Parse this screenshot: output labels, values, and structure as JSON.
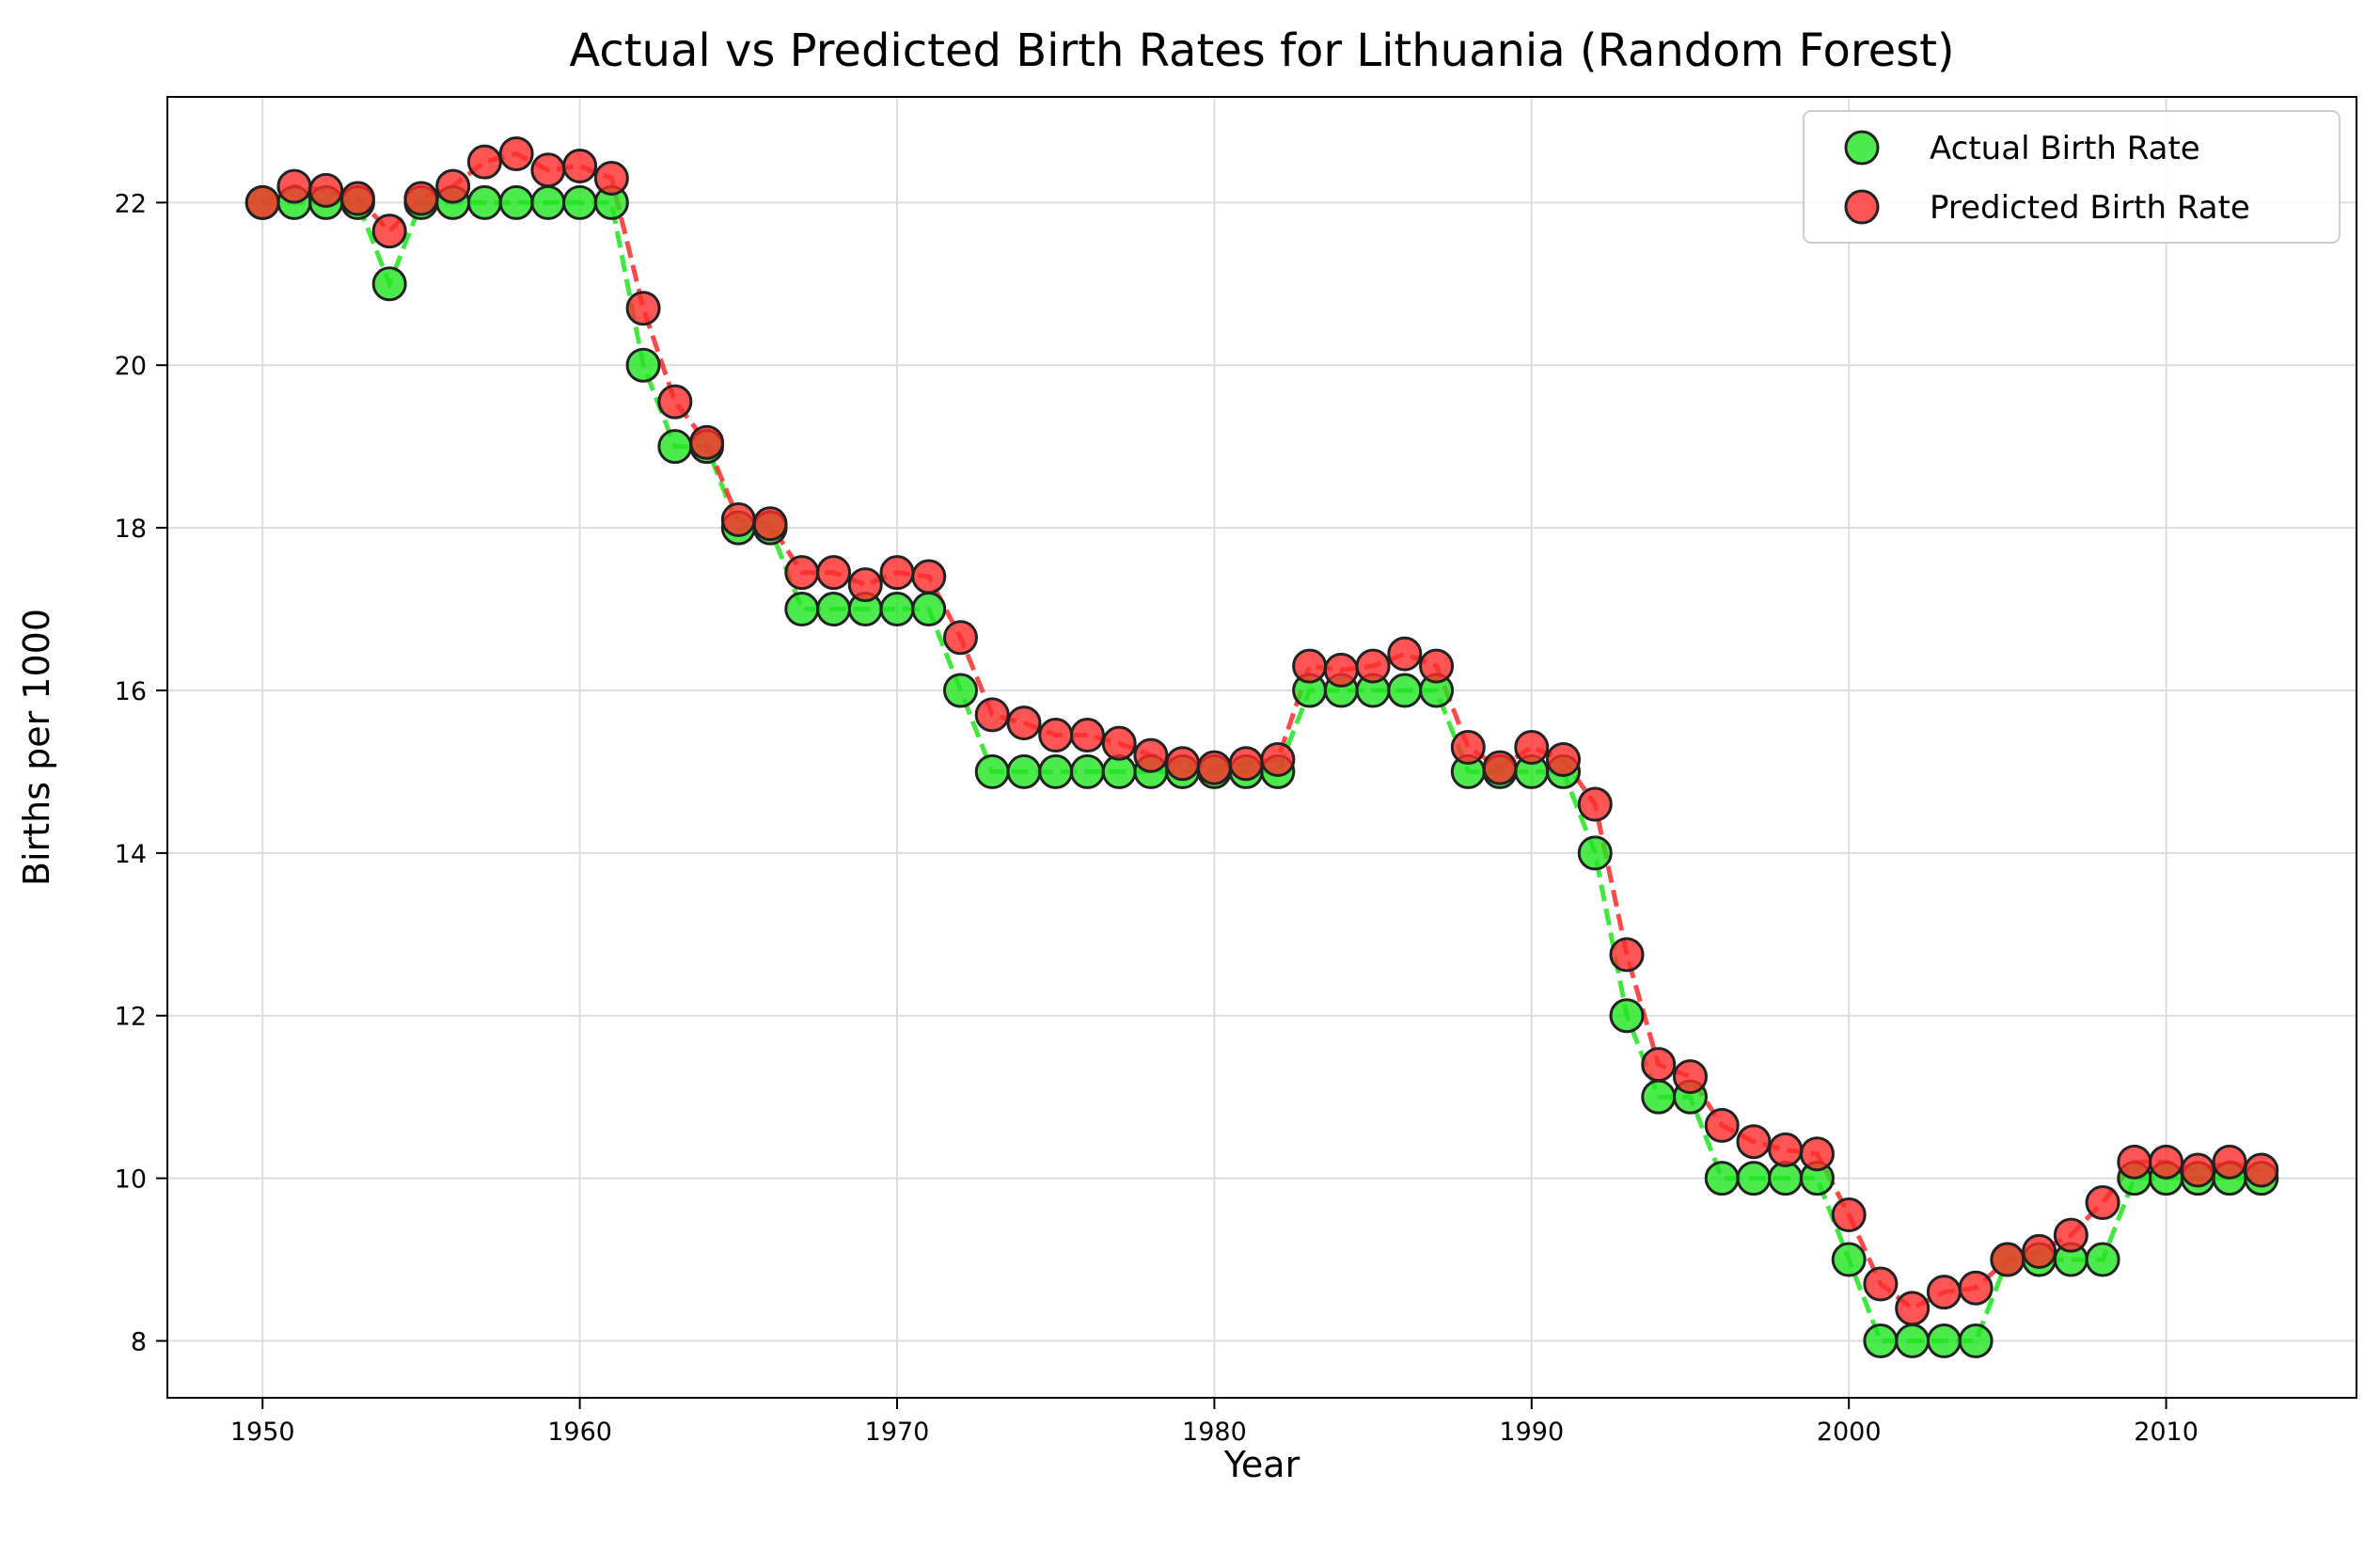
{
  "chart_data": {
    "type": "scatter",
    "title": "Actual vs Predicted Birth Rates for Lithuania (Random Forest)",
    "xlabel": "Year",
    "ylabel": "Births per 1000",
    "xlim": [
      1947,
      2016
    ],
    "ylim": [
      7.3,
      23.3
    ],
    "xticks": [
      1950,
      1960,
      1970,
      1980,
      1990,
      2000,
      2010
    ],
    "yticks": [
      8,
      10,
      12,
      14,
      16,
      18,
      20,
      22
    ],
    "grid": true,
    "legend_position": "top-right",
    "x": [
      1950,
      1951,
      1952,
      1953,
      1954,
      1955,
      1956,
      1957,
      1958,
      1959,
      1960,
      1961,
      1962,
      1963,
      1964,
      1965,
      1966,
      1967,
      1968,
      1969,
      1970,
      1971,
      1972,
      1973,
      1974,
      1975,
      1976,
      1977,
      1978,
      1979,
      1980,
      1981,
      1982,
      1983,
      1984,
      1985,
      1986,
      1987,
      1988,
      1989,
      1990,
      1991,
      1992,
      1993,
      1994,
      1995,
      1996,
      1997,
      1998,
      1999,
      2000,
      2001,
      2002,
      2003,
      2004,
      2005,
      2006,
      2007,
      2008,
      2009,
      2010,
      2011,
      2012,
      2013
    ],
    "series": [
      {
        "name": "Actual Birth Rate",
        "color": "#1fe51f",
        "values": [
          22,
          22,
          22,
          22,
          21,
          22,
          22,
          22,
          22,
          22,
          22,
          22,
          20,
          19,
          19,
          18,
          18,
          17,
          17,
          17,
          17,
          17,
          16,
          15,
          15,
          15,
          15,
          15,
          15,
          15,
          15,
          15,
          15,
          16,
          16,
          16,
          16,
          16,
          15,
          15,
          15,
          15,
          14,
          12,
          11,
          11,
          10,
          10,
          10,
          10,
          9,
          8,
          8,
          8,
          8,
          9,
          9,
          9,
          9,
          10,
          10,
          10,
          10,
          10
        ]
      },
      {
        "name": "Predicted Birth Rate",
        "color": "#ff2a2a",
        "values": [
          22.0,
          22.2,
          22.15,
          22.05,
          21.65,
          22.05,
          22.2,
          22.5,
          22.6,
          22.4,
          22.45,
          22.3,
          20.7,
          19.55,
          19.05,
          18.1,
          18.05,
          17.45,
          17.45,
          17.3,
          17.45,
          17.4,
          16.65,
          15.7,
          15.6,
          15.45,
          15.45,
          15.35,
          15.2,
          15.1,
          15.05,
          15.1,
          15.15,
          16.3,
          16.25,
          16.3,
          16.45,
          16.3,
          15.3,
          15.05,
          15.3,
          15.15,
          14.6,
          12.75,
          11.4,
          11.25,
          10.65,
          10.45,
          10.35,
          10.3,
          9.55,
          8.7,
          8.4,
          8.6,
          8.65,
          9.0,
          9.1,
          9.3,
          9.7,
          10.2,
          10.2,
          10.1,
          10.2,
          10.1
        ]
      }
    ]
  }
}
